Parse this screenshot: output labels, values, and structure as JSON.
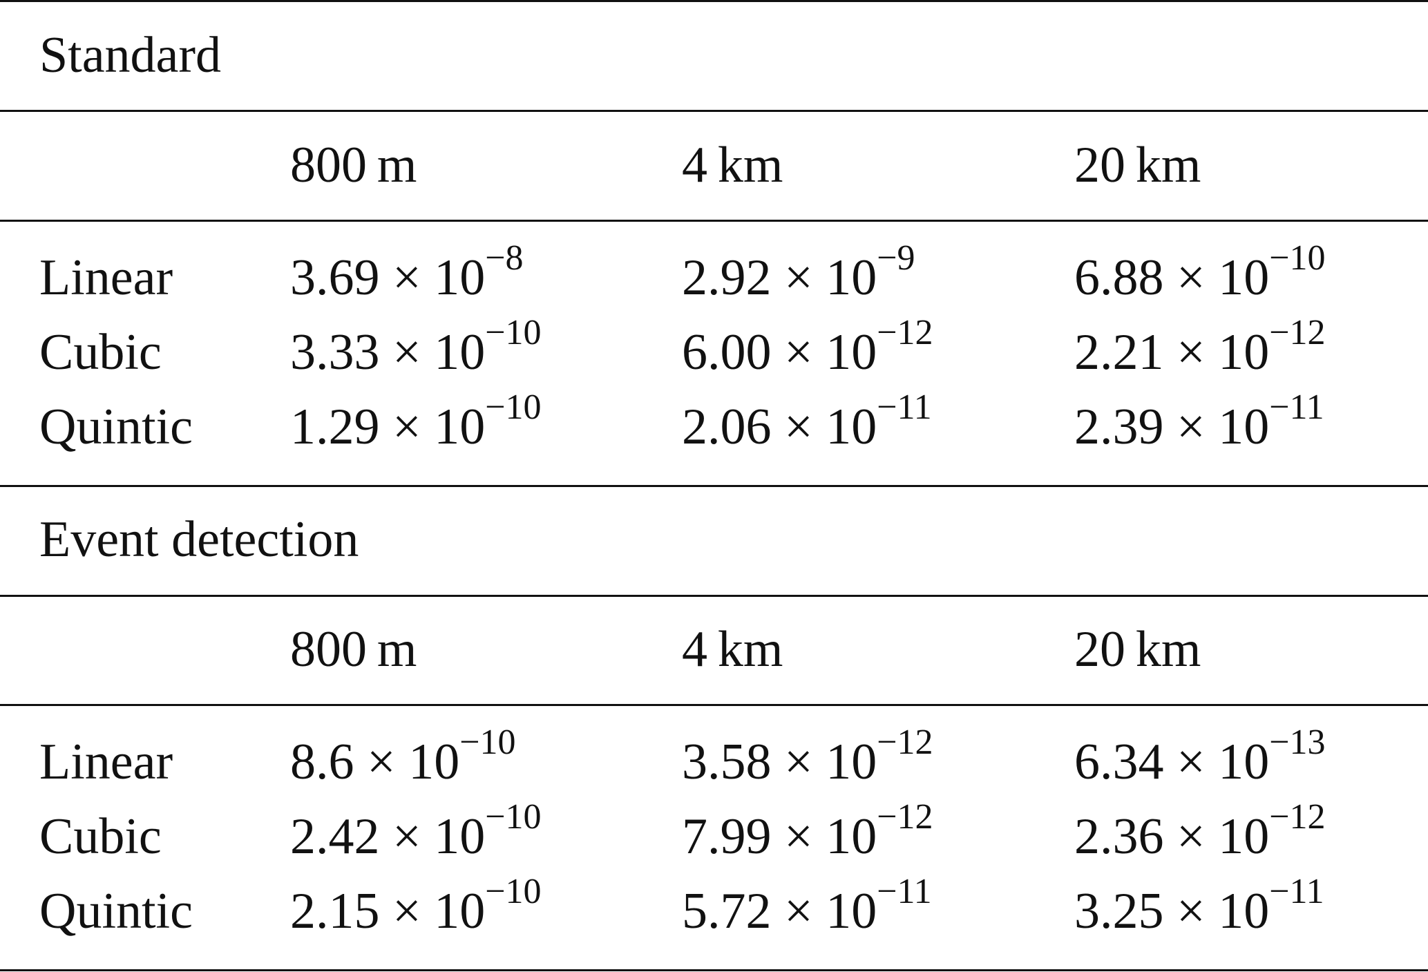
{
  "sections": [
    {
      "title": "Standard",
      "headers": [
        "800 m",
        "4 km",
        "20 km"
      ],
      "rows": [
        {
          "label": "Linear",
          "cells": [
            {
              "m": "3.69 × 10",
              "e": "−8"
            },
            {
              "m": "2.92 × 10",
              "e": "−9"
            },
            {
              "m": "6.88 × 10",
              "e": "−10"
            }
          ]
        },
        {
          "label": "Cubic",
          "cells": [
            {
              "m": "3.33 × 10",
              "e": "−10"
            },
            {
              "m": "6.00 × 10",
              "e": "−12"
            },
            {
              "m": "2.21 × 10",
              "e": "−12"
            }
          ]
        },
        {
          "label": "Quintic",
          "cells": [
            {
              "m": "1.29 × 10",
              "e": "−10"
            },
            {
              "m": "2.06 × 10",
              "e": "−11"
            },
            {
              "m": "2.39 × 10",
              "e": "−11"
            }
          ]
        }
      ]
    },
    {
      "title": "Event detection",
      "headers": [
        "800 m",
        "4 km",
        "20 km"
      ],
      "rows": [
        {
          "label": "Linear",
          "cells": [
            {
              "m": "8.6 × 10",
              "e": "−10"
            },
            {
              "m": "3.58 × 10",
              "e": "−12"
            },
            {
              "m": "6.34 × 10",
              "e": "−13"
            }
          ]
        },
        {
          "label": "Cubic",
          "cells": [
            {
              "m": "2.42 × 10",
              "e": "−10"
            },
            {
              "m": "7.99 × 10",
              "e": "−12"
            },
            {
              "m": "2.36 × 10",
              "e": "−12"
            }
          ]
        },
        {
          "label": "Quintic",
          "cells": [
            {
              "m": "2.15 × 10",
              "e": "−10"
            },
            {
              "m": "5.72 × 10",
              "e": "−11"
            },
            {
              "m": "3.25 × 10",
              "e": "−11"
            }
          ]
        }
      ]
    }
  ]
}
